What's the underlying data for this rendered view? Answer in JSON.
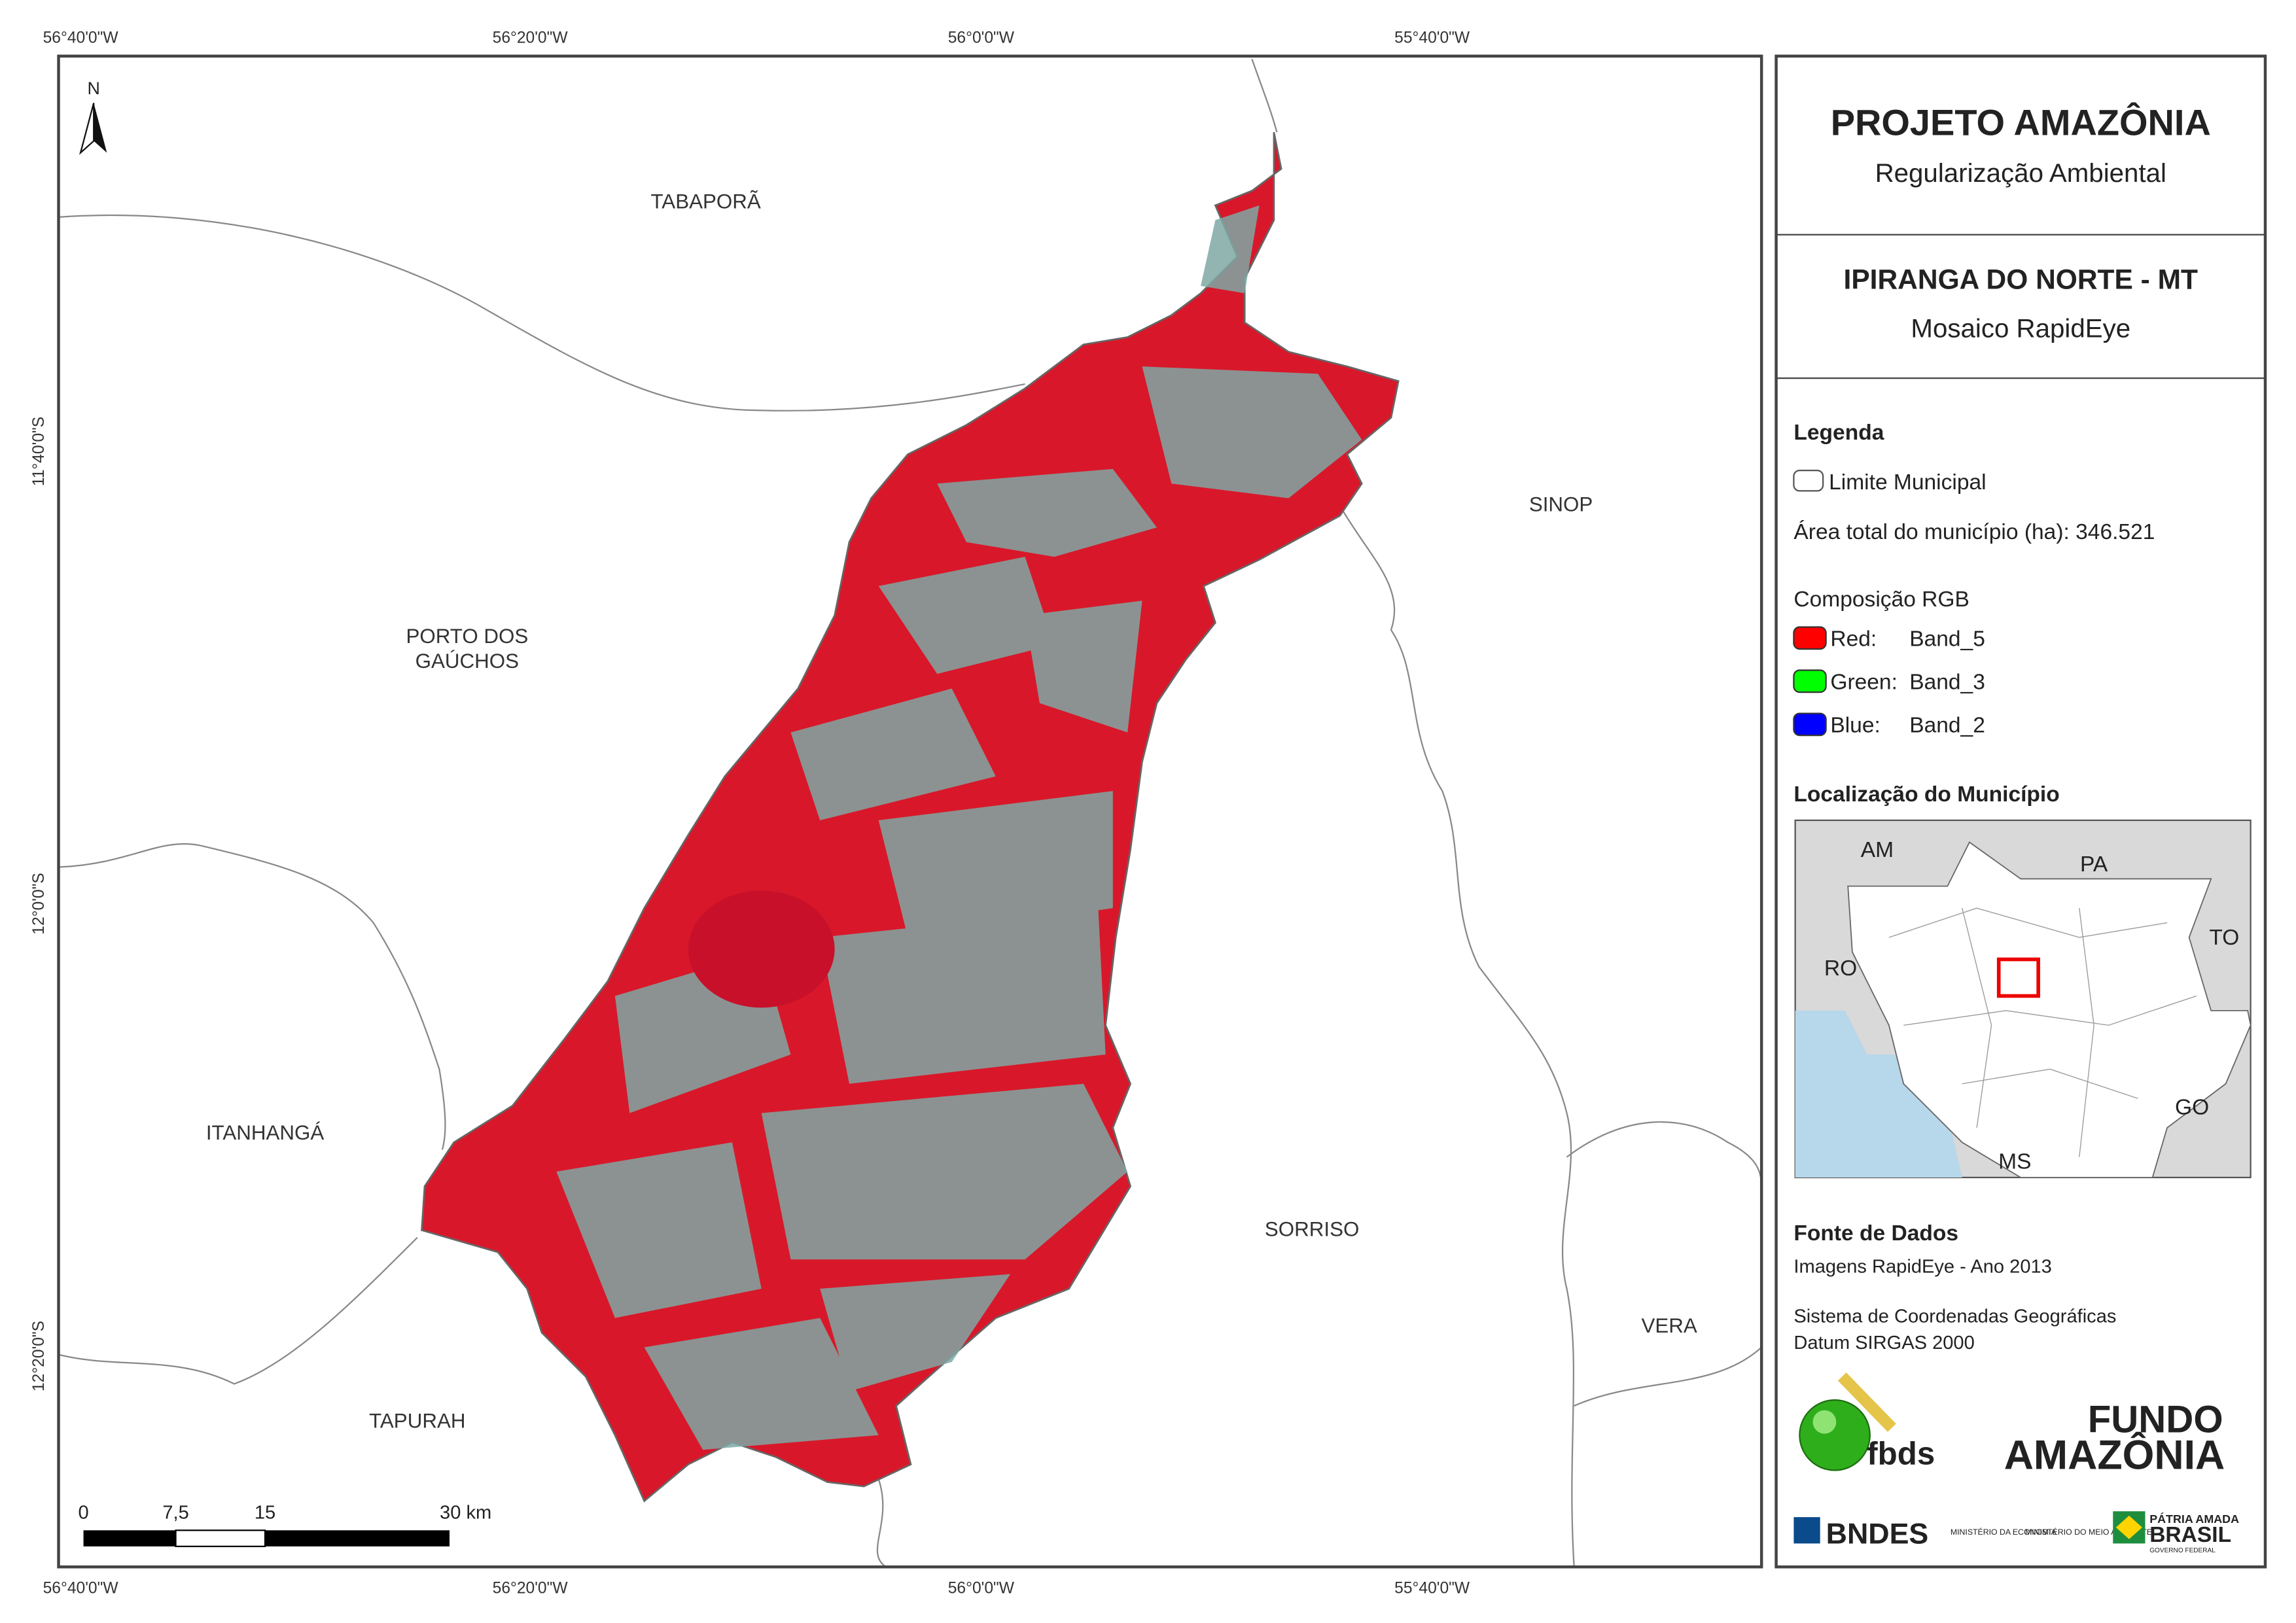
{
  "map": {
    "lon_labels": [
      "56°40'0\"W",
      "56°20'0\"W",
      "56°0'0\"W",
      "55°40'0\"W"
    ],
    "lat_labels": [
      "11°40'0\"S",
      "12°0'0\"S",
      "12°20'0\"S"
    ],
    "north": "N",
    "places": {
      "tabapora": "TABAPORÃ",
      "sinop": "SINOP",
      "porto_dos_gauchos": [
        "PORTO DOS",
        "GAÚCHOS"
      ],
      "itanhanga": "ITANHANGÁ",
      "sorriso": "SORRISO",
      "vera": "VERA",
      "tapurah": "TAPURAH"
    },
    "scale_labels": [
      "0",
      "7,5",
      "15",
      "30 km"
    ]
  },
  "panel": {
    "title": "PROJETO AMAZÔNIA",
    "subtitle": "Regularização Ambiental",
    "municipality": "IPIRANGA DO NORTE - MT",
    "product": "Mosaico RapidEye",
    "legend": {
      "title": "Legenda",
      "boundary": "Limite Municipal",
      "area": "Área total do município (ha): 346.521",
      "rgb_title": "Composição RGB",
      "bands": [
        {
          "channel": "Red:",
          "band": "Band_5",
          "color": "#ff0000"
        },
        {
          "channel": "Green:",
          "band": "Band_3",
          "color": "#00ff00"
        },
        {
          "channel": "Blue:",
          "band": "Band_2",
          "color": "#0000ff"
        }
      ]
    },
    "location": {
      "title": "Localização do Município",
      "states": [
        "AM",
        "PA",
        "TO",
        "RO",
        "GO",
        "MS"
      ]
    },
    "sources": {
      "title": "Fonte de Dados",
      "lines": [
        "Imagens RapidEye - Ano 2013",
        "Sistema de Coordenadas Geográficas",
        "Datum SIRGAS 2000"
      ]
    },
    "logos": {
      "fbds": "fbds",
      "fundo": "FUNDO",
      "amazonia": "AMAZÔNIA",
      "bndes": "BNDES",
      "min_economia": "MINISTÉRIO DA ECONOMIA",
      "min_ambiente": "MINISTÉRIO DO MEIO AMBIENTE",
      "patria": "PÁTRIA AMADA",
      "brasil": "BRASIL",
      "governo": "GOVERNO FEDERAL"
    }
  }
}
